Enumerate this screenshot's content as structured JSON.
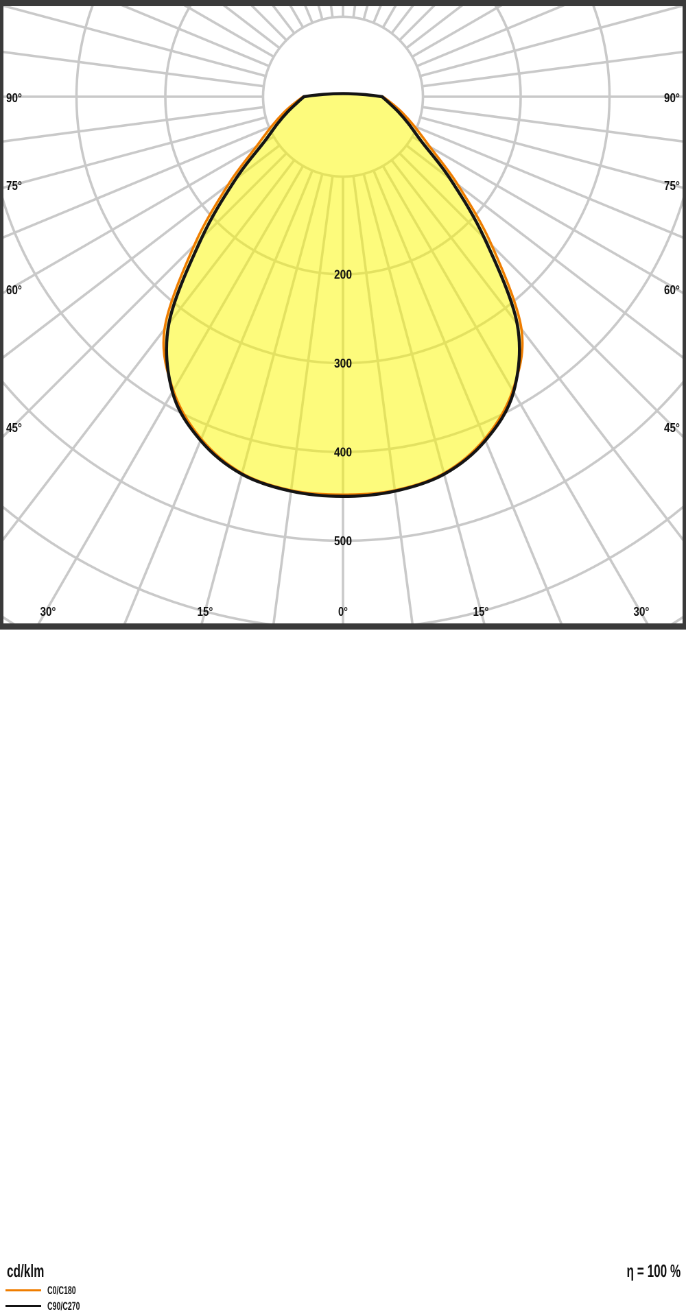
{
  "footer": {
    "unit_label": "cd/klm",
    "efficiency_label": "η = 100 %"
  },
  "legend": {
    "items": [
      {
        "label": "C0/C180",
        "color": "#ef7d00"
      },
      {
        "label": "C90/C270",
        "color": "#141414"
      }
    ]
  },
  "frame": {
    "color": "#3a3a3a",
    "background": "#ffffff"
  },
  "chart_data": {
    "type": "line",
    "projection": "polar-photometric",
    "unit": "cd/klm",
    "efficiency": "η = 100 %",
    "symmetric_mirror": true,
    "angles_deg": [
      0,
      7.5,
      15,
      22.5,
      30,
      37.5,
      45,
      52.5,
      60,
      67.5,
      75,
      82.5,
      90
    ],
    "series": [
      {
        "name": "C0/C180",
        "color": "#ef7d00",
        "values": [
          448,
          447,
          439,
          417,
          382,
          330,
          237,
          163,
          113,
          87,
          69,
          55,
          45
        ]
      },
      {
        "name": "C90/C270",
        "color": "#141414",
        "values": [
          450,
          448,
          440,
          419,
          384,
          322,
          225,
          152,
          103,
          80,
          64,
          52,
          44
        ]
      }
    ],
    "radial_gridlines": [
      200,
      300,
      400,
      500,
      600,
      700
    ],
    "radial_tick_labels": [
      "200",
      "300",
      "400",
      "500"
    ],
    "inner_ray_circle_radius": 90,
    "ray_step_deg": 7.5,
    "angle_tick_labels": {
      "left": [
        "90°",
        "75°",
        "60°",
        "45°"
      ],
      "right": [
        "90°",
        "75°",
        "60°",
        "45°"
      ],
      "bottom": [
        "30°",
        "15°",
        "0°",
        "15°",
        "30°"
      ]
    },
    "grid_color": "#c9c9c9",
    "fill_color": "rgba(251,249,0,0.30)",
    "ylim": [
      0,
      700
    ],
    "legend_position": "bottom-left"
  }
}
